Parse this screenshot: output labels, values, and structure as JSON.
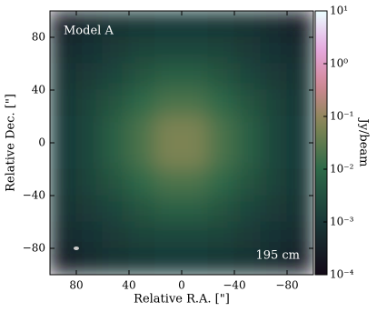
{
  "chart_data": {
    "type": "image",
    "annotations": [
      "Model A",
      "195 cm"
    ],
    "xlabel": "Relative R.A. [\"]",
    "ylabel": "Relative Dec. [\"]",
    "colorbar_label": "Jy/beam",
    "x": [
      90,
      70,
      50,
      30,
      10,
      -10,
      -30,
      -50,
      -70,
      -90
    ],
    "y": [
      90,
      70,
      50,
      30,
      10,
      -10,
      -30,
      -50,
      -70,
      -90
    ],
    "z": [
      [
        0.0003,
        0.0005,
        0.0007,
        0.0009,
        0.001,
        0.001,
        0.0009,
        0.0007,
        0.0005,
        0.0003
      ],
      [
        0.0005,
        0.0008,
        0.0012,
        0.0018,
        0.002,
        0.002,
        0.0018,
        0.0012,
        0.0008,
        0.0005
      ],
      [
        0.0007,
        0.0012,
        0.002,
        0.004,
        0.007,
        0.007,
        0.004,
        0.002,
        0.0012,
        0.0007
      ],
      [
        0.0009,
        0.0018,
        0.004,
        0.01,
        0.02,
        0.02,
        0.01,
        0.004,
        0.0018,
        0.0009
      ],
      [
        0.001,
        0.002,
        0.007,
        0.02,
        0.06,
        0.06,
        0.02,
        0.007,
        0.002,
        0.001
      ],
      [
        0.001,
        0.002,
        0.007,
        0.02,
        0.06,
        0.06,
        0.02,
        0.007,
        0.002,
        0.001
      ],
      [
        0.0009,
        0.0018,
        0.004,
        0.01,
        0.02,
        0.02,
        0.01,
        0.004,
        0.0018,
        0.0009
      ],
      [
        0.0007,
        0.0012,
        0.002,
        0.004,
        0.007,
        0.007,
        0.004,
        0.002,
        0.0012,
        0.0007
      ],
      [
        0.0005,
        0.0008,
        0.0012,
        0.0018,
        0.002,
        0.002,
        0.0018,
        0.0012,
        0.0008,
        0.0005
      ],
      [
        0.0003,
        0.0005,
        0.0007,
        0.0009,
        0.001,
        0.001,
        0.0009,
        0.0007,
        0.0005,
        0.0003
      ]
    ],
    "xlim": [
      100,
      -100
    ],
    "xticks": [
      80,
      40,
      0,
      {
        "value": -40,
        "label": "−40"
      },
      {
        "value": -80,
        "label": "−80"
      }
    ],
    "ylim": [
      -100,
      100
    ],
    "yticks": [
      {
        "value": -80,
        "label": "−80"
      },
      {
        "value": -40,
        "label": "−40"
      },
      0,
      40,
      80
    ],
    "clim": [
      0.0001,
      10
    ],
    "color_scale": "log",
    "cticks": [
      {
        "value": 0.0001,
        "label": "10⁻⁴"
      },
      {
        "value": 0.001,
        "label": "10⁻³"
      },
      {
        "value": 0.01,
        "label": "10⁻²"
      },
      {
        "value": 0.1,
        "label": "10⁻¹"
      },
      {
        "value": 1,
        "label": "10⁰"
      },
      {
        "value": 10,
        "label": "10¹"
      }
    ]
  }
}
